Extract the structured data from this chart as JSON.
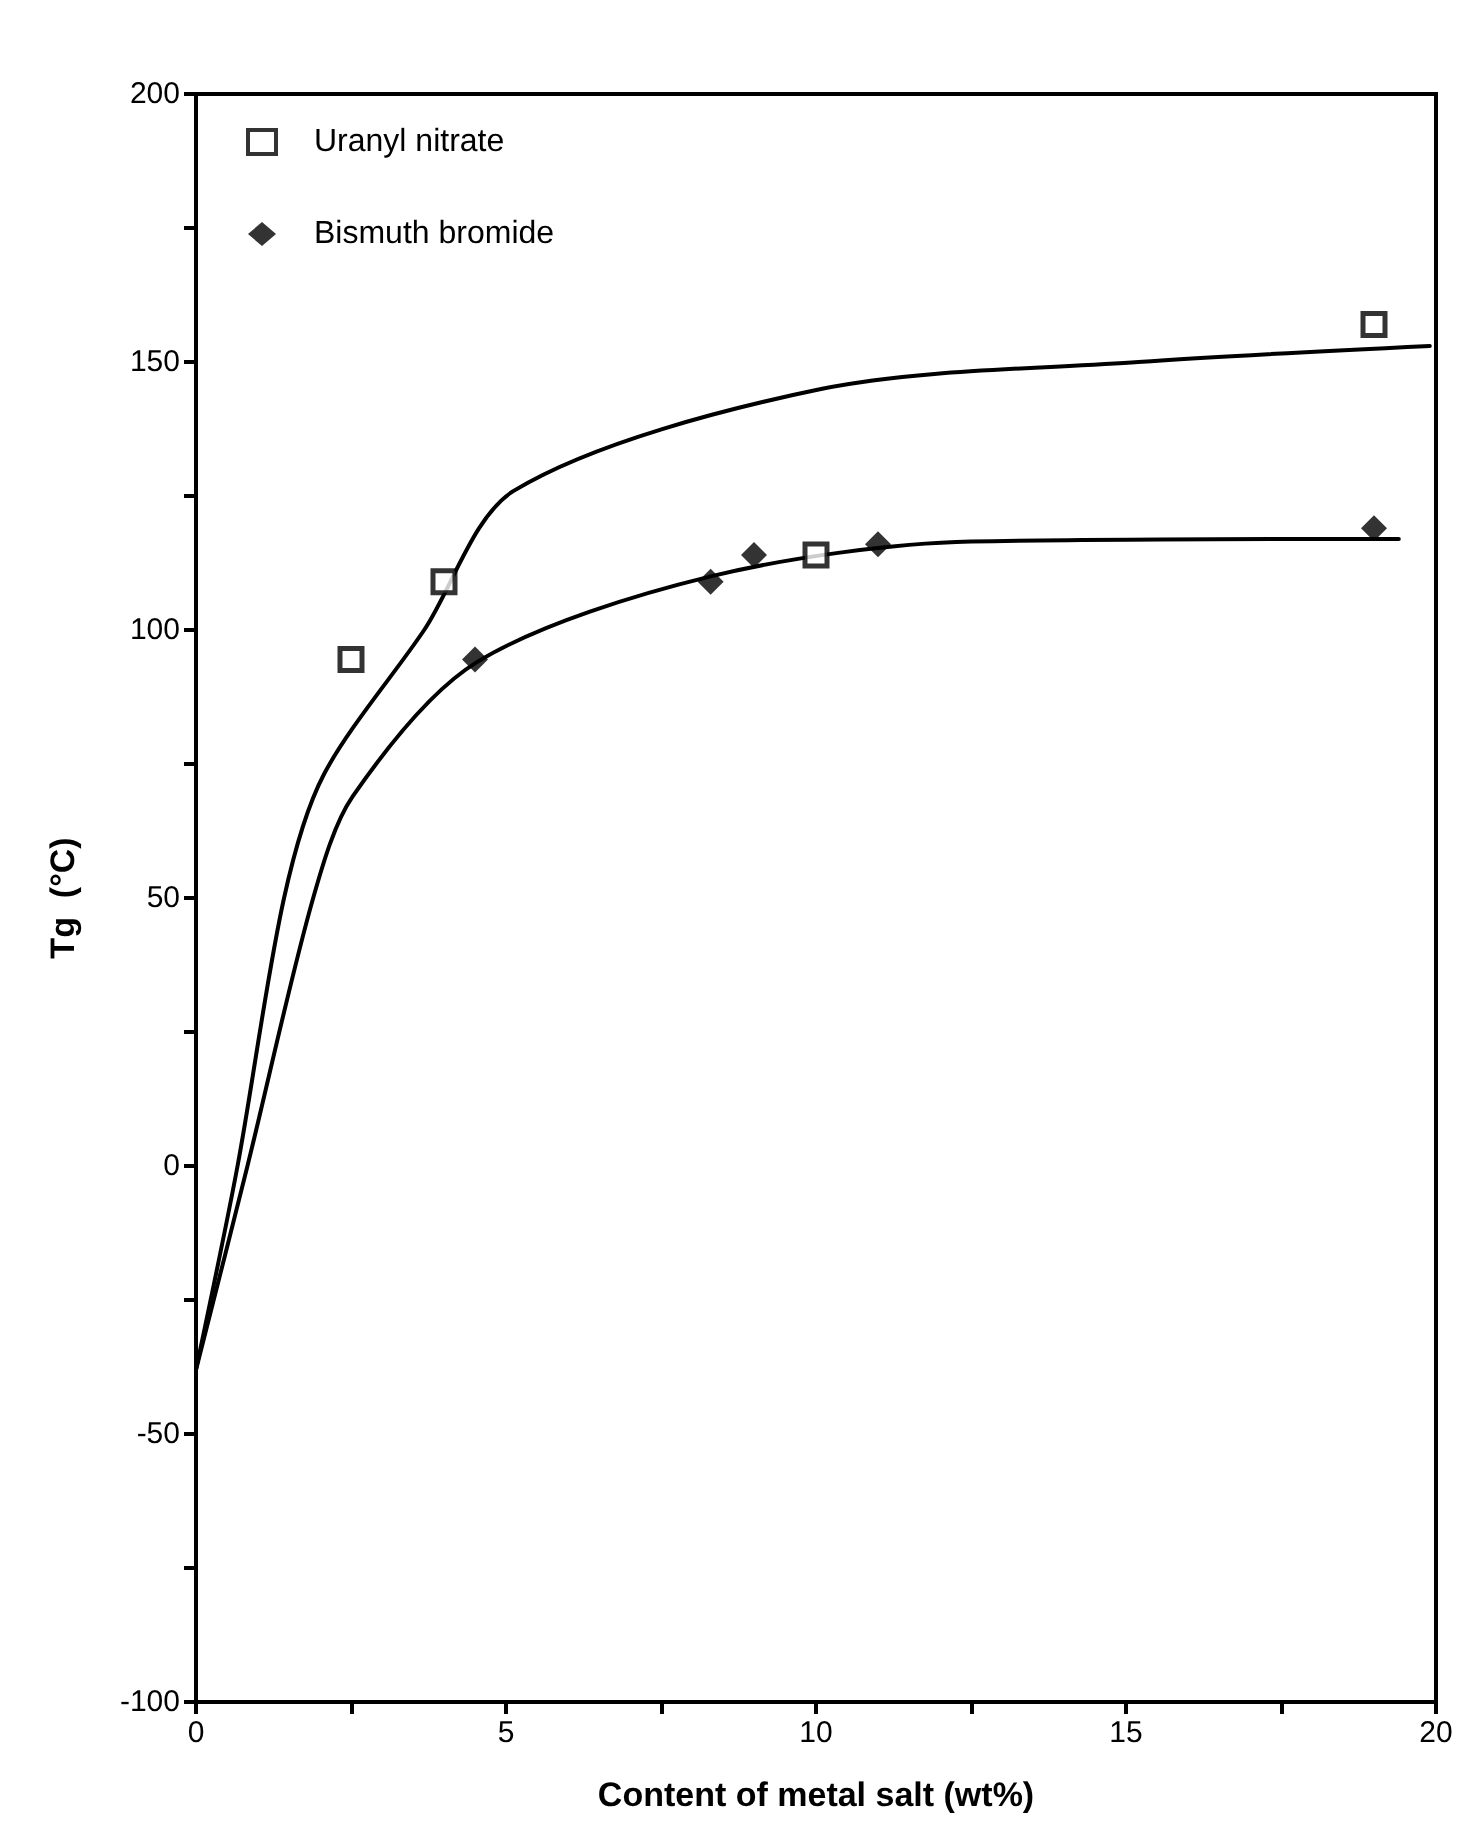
{
  "chart_data": {
    "type": "scatter",
    "xlabel": "Content of metal salt (wt%)",
    "ylabel": "Tg  (°C)",
    "xlim": [
      0,
      20
    ],
    "xticks": [
      0,
      {
        "value": 2.5,
        "label": null
      },
      5,
      {
        "value": 7.5,
        "label": null
      },
      10,
      {
        "value": 12.5,
        "label": null
      },
      15,
      {
        "value": 17.5,
        "label": null
      },
      20
    ],
    "ylim": [
      -100,
      200
    ],
    "yticks": [
      -100,
      {
        "value": -75,
        "label": null
      },
      -50,
      {
        "value": -25,
        "label": null
      },
      0,
      {
        "value": 25,
        "label": null
      },
      50,
      {
        "value": 75,
        "label": null
      },
      100,
      {
        "value": 125,
        "label": null
      },
      150,
      {
        "value": 175,
        "label": null
      },
      200
    ],
    "grid": false,
    "legend": "top left",
    "series": [
      {
        "name": "Uranyl nitrate",
        "color": "#000000",
        "marker": "square",
        "x": [
          2.5,
          4,
          10,
          19
        ],
        "values": [
          94.5,
          109,
          114,
          157
        ]
      },
      {
        "name": "Bismuth bromide",
        "color": "#000000",
        "marker": "diamond",
        "x": [
          4.5,
          8.3,
          9,
          11,
          19
        ],
        "values": [
          94.5,
          109,
          114,
          116,
          119
        ]
      },
      {
        "type": "line",
        "color": "#000000",
        "marker": "none",
        "x": [
          0,
          0.67,
          1.42,
          2.06,
          3.68,
          5.13,
          10.1,
          15.2,
          19.9
        ],
        "values": [
          -38,
          0,
          50,
          73,
          100,
          126,
          145,
          150,
          153
        ]
      },
      {
        "type": "line",
        "color": "#000000",
        "marker": "none",
        "x": [
          0,
          0.83,
          1.89,
          2.53,
          4.53,
          8.3,
          12.5,
          19.4
        ],
        "values": [
          -38,
          0,
          50,
          69,
          94,
          110,
          116.5,
          117
        ]
      }
    ]
  }
}
